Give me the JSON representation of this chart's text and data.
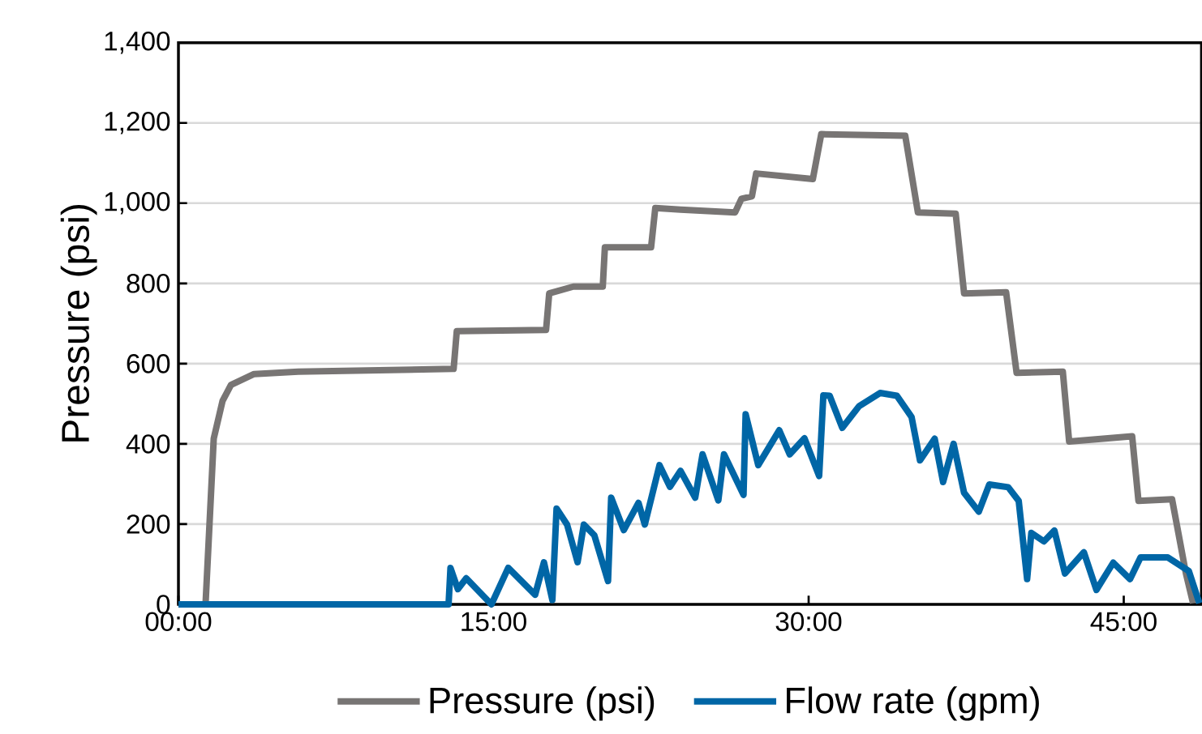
{
  "chart_data": {
    "type": "line",
    "ylabel": "Pressure (psi)",
    "xlim": [
      0,
      48.7
    ],
    "xticks": [
      {
        "value": 0,
        "label": "00:00"
      },
      {
        "value": 15,
        "label": "15:00"
      },
      {
        "value": 30,
        "label": "30:00"
      },
      {
        "value": 45,
        "label": "45:00"
      }
    ],
    "ylim": [
      0,
      1400
    ],
    "yticks": [
      0,
      200,
      400,
      600,
      800,
      {
        "value": 1000,
        "label": "1,000"
      },
      {
        "value": 1200,
        "label": "1,200"
      },
      {
        "value": 1400,
        "label": "1,400"
      }
    ],
    "grid": "y",
    "legend": "bottom",
    "series": [
      {
        "name": "Pressure (psi)",
        "color": "#787574",
        "x": [
          0,
          1.29,
          1.68,
          2.1,
          2.5,
          3.6,
          5.7,
          13.1,
          13.25,
          17.5,
          17.65,
          18.8,
          20.2,
          20.3,
          22.5,
          22.7,
          23.9,
          26.5,
          26.8,
          27.3,
          27.5,
          30.2,
          30.6,
          34.6,
          35.2,
          37.0,
          37.4,
          39.4,
          39.9,
          42.1,
          42.4,
          45.4,
          45.7,
          47.3,
          47.96,
          48.3
        ],
        "values": [
          0,
          0,
          413,
          507,
          547,
          574,
          580,
          587,
          681,
          684,
          775,
          792,
          792,
          890,
          890,
          988,
          984,
          977,
          1011,
          1017,
          1074,
          1060,
          1172,
          1168,
          977,
          974,
          775,
          778,
          577,
          580,
          406,
          419,
          258,
          262,
          77,
          3
        ]
      },
      {
        "name": "Flow rate (gpm)",
        "color": "#0066a6",
        "x": [
          0,
          12.86,
          12.95,
          13.3,
          13.7,
          14.9,
          15.7,
          16.98,
          17.4,
          17.8,
          18.0,
          18.5,
          19.0,
          19.3,
          19.8,
          20.45,
          20.6,
          21.2,
          21.9,
          22.2,
          22.9,
          23.4,
          23.9,
          24.6,
          24.95,
          25.7,
          25.97,
          26.9,
          27.0,
          27.6,
          28.6,
          29.1,
          29.8,
          30.5,
          30.7,
          31.0,
          31.6,
          32.4,
          33.4,
          34.2,
          34.9,
          35.3,
          36.0,
          36.4,
          36.9,
          37.4,
          38.1,
          38.6,
          39.5,
          40.0,
          40.4,
          40.6,
          41.2,
          41.7,
          42.2,
          43.1,
          43.7,
          44.5,
          45.3,
          45.8,
          47.1,
          48.1,
          48.6
        ],
        "values": [
          0,
          0,
          91,
          38,
          65,
          0,
          91,
          24,
          105,
          11,
          239,
          199,
          105,
          199,
          172,
          58,
          266,
          185,
          253,
          199,
          347,
          293,
          333,
          266,
          374,
          259,
          374,
          273,
          474,
          347,
          434,
          374,
          414,
          320,
          521,
          520,
          440,
          494,
          527,
          520,
          467,
          359,
          413,
          305,
          400,
          278,
          231,
          299,
          292,
          258,
          63,
          178,
          157,
          184,
          77,
          130,
          36,
          104,
          63,
          117,
          117,
          83,
          3
        ]
      }
    ]
  }
}
